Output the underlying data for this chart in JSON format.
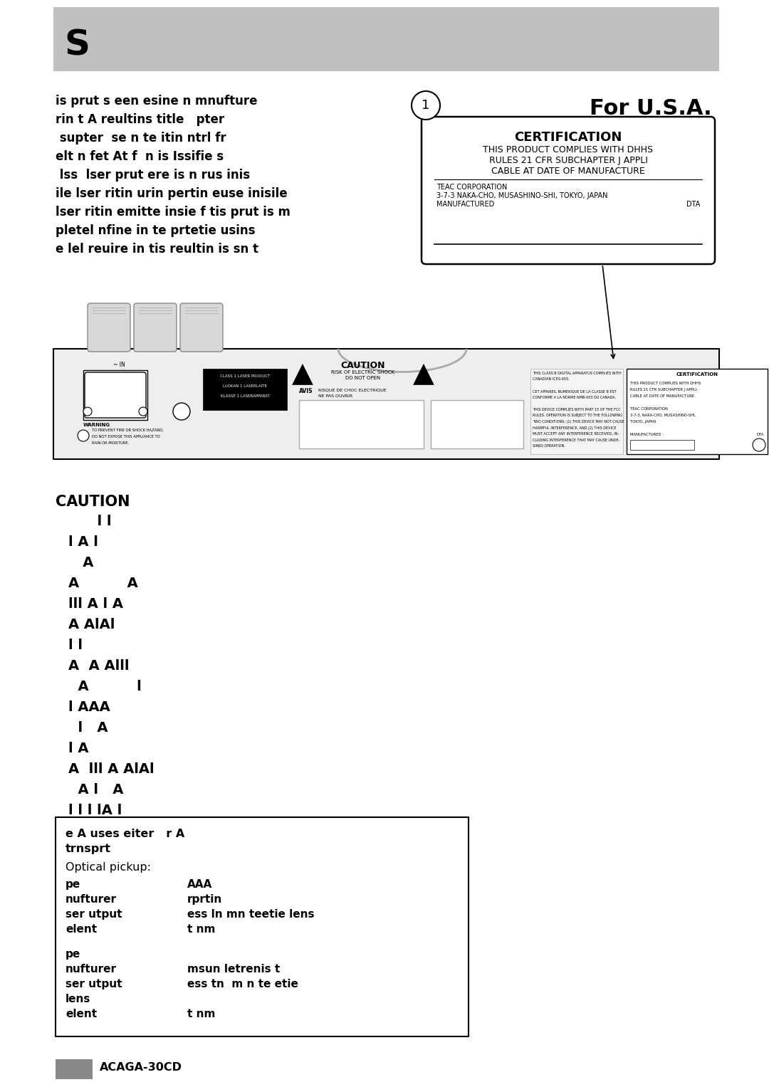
{
  "page_bg": "#ffffff",
  "header_bg": "#c0c0c0",
  "header_text": "S",
  "safety_lines": [
    "is prut s een esine n mnufture",
    "rin t A reultins title   pter",
    " supter  se n te itin ntrl fr",
    "elt n fet At f  n is Issifie s",
    " lss  lser prut ere is n rus inis",
    "ile lser ritin urin pertin euse inisile",
    "lser ritin emitte insie f tis prut is m",
    "pletel nfine in te prtetie usins",
    "e lel reuire in tis reultin is sn t"
  ],
  "cert_box": {
    "circle_num": "1",
    "for_usa": "For U.S.A.",
    "cert_title": "CERTIFICATION",
    "cert_line1": "THIS PRODUCT COMPLIES WITH DHHS",
    "cert_line2": "RULES 21 CFR SUBCHAPTER J APPLI",
    "cert_line3": "CABLE AT DATE OF MANUFACTURE",
    "cert_line4": "TEAC CORPORATION",
    "cert_line5": "3-7-3 NAKA-CHO, MUSASHINO-SHI, TOKYO, JAPAN",
    "cert_line6": "MANUFACTURED",
    "cert_line6b": "DTA"
  },
  "caution_title": "CAUTION",
  "caution_lines": [
    "      l l",
    "l A l",
    "   A",
    "A          A",
    "lll A l A",
    "A AlAl",
    "l l",
    "A  A Alll",
    "  A          l",
    "l AAA",
    "  l   A",
    "l A",
    "A  lll A AlAl",
    "  A l   A",
    "l l l lA l"
  ],
  "spec_box": {
    "line1": "e A uses eiter   r A",
    "line2": "trnsprt",
    "optical_label": "Optical pickup:",
    "pe1_label": "pe",
    "pe1_val": "AAA",
    "nufturer1_label": "nufturer",
    "nufturer1_val": "rprtin",
    "ser_utput1_label": "ser utput",
    "ser_utput1_val": "ess ln mn teetie lens",
    "elent1_label": "elent",
    "elent1_val": "t nm",
    "pe2_label": "pe",
    "pe2_val": "",
    "nufturer2_label": "nufturer",
    "nufturer2_val": "msun letrenis t",
    "ser_utput2_label": "ser utput",
    "ser_utput2_val": "ess tn  m n te etie",
    "lens2_label": "lens",
    "lens2_val": "",
    "elent2_label": "elent",
    "elent2_val": "t nm"
  },
  "footer_text": "ACAGA-30CD",
  "footer_bar_color": "#888888"
}
